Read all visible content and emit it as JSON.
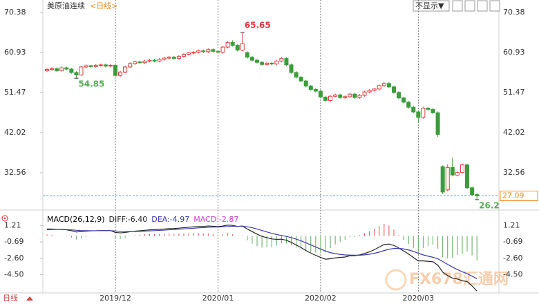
{
  "title": "美原油连续",
  "period_link": "<日线>",
  "hide_button": "不显示▼",
  "footer_period": "日线",
  "watermark": "FX678汇通网",
  "chart_data": [
    {
      "type": "candlestick",
      "ylim": [
        24.4,
        72.0
      ],
      "yticks": [
        70.38,
        60.93,
        51.47,
        42.02,
        32.56
      ],
      "up_color": "#e03c3c",
      "down_color": "#3c9c3c",
      "last": 27.09,
      "last_color": "#f08c1e",
      "months": [
        {
          "index": 14,
          "label": "2019/12"
        },
        {
          "index": 35,
          "label": "2020/01"
        },
        {
          "index": 56,
          "label": "2020/02"
        },
        {
          "index": 76,
          "label": "2020/03"
        }
      ],
      "annotations": [
        {
          "index": 40,
          "value": 65.65,
          "color": "#e03c3c"
        },
        {
          "index": 6,
          "value": 54.85,
          "color": "#5aaa5a"
        },
        {
          "index": 88,
          "value": 26.2,
          "color": "#5aaa5a"
        }
      ],
      "open": [
        56.6,
        56.9,
        57.1,
        56.6,
        57.3,
        57.0,
        56.2,
        55.6,
        57.5,
        57.8,
        57.6,
        57.9,
        58.0,
        57.7,
        57.9,
        55.5,
        56.3,
        57.5,
        58.3,
        58.7,
        58.5,
        58.9,
        59.1,
        58.9,
        59.3,
        59.6,
        59.8,
        59.5,
        60.0,
        60.5,
        60.8,
        61.0,
        61.3,
        61.1,
        61.6,
        61.2,
        61.0,
        62.2,
        63.3,
        62.6,
        61.5,
        60.9,
        59.8,
        59.1,
        58.6,
        58.1,
        58.4,
        58.2,
        58.9,
        59.5,
        58.0,
        56.2,
        55.1,
        54.2,
        53.0,
        52.2,
        51.8,
        50.4,
        49.6,
        50.6,
        50.9,
        50.3,
        50.5,
        51.1,
        50.3,
        50.8,
        51.6,
        52.0,
        52.3,
        53.1,
        53.6,
        52.8,
        51.5,
        50.2,
        49.2,
        48.0,
        46.9,
        45.6,
        47.8,
        47.5,
        46.7,
        34.0,
        28.5,
        33.8,
        32.0,
        32.6,
        34.4,
        29.0,
        27.4
      ],
      "high": [
        57.2,
        57.4,
        57.4,
        57.6,
        57.6,
        57.3,
        56.5,
        57.8,
        58.1,
        58.0,
        58.2,
        58.3,
        58.3,
        58.2,
        58.1,
        56.6,
        57.8,
        58.6,
        59.0,
        59.0,
        59.2,
        59.4,
        59.4,
        59.6,
        59.9,
        60.1,
        60.1,
        60.3,
        60.8,
        61.1,
        61.3,
        61.6,
        61.6,
        61.9,
        61.9,
        61.5,
        62.5,
        63.6,
        63.8,
        62.9,
        65.65,
        61.2,
        60.1,
        59.4,
        58.9,
        58.7,
        58.7,
        59.2,
        59.8,
        59.8,
        58.3,
        56.5,
        55.4,
        54.5,
        53.3,
        52.5,
        52.1,
        50.7,
        50.9,
        51.2,
        51.2,
        50.8,
        51.4,
        51.4,
        51.1,
        51.9,
        52.3,
        52.6,
        53.4,
        53.9,
        53.9,
        53.1,
        51.8,
        50.5,
        49.5,
        48.3,
        47.2,
        48.1,
        48.1,
        47.8,
        47.0,
        34.3,
        34.5,
        36.1,
        33.0,
        34.7,
        34.7,
        29.3,
        27.7
      ],
      "low": [
        56.3,
        56.6,
        56.3,
        56.4,
        56.7,
        55.9,
        54.85,
        55.4,
        57.2,
        57.3,
        57.3,
        57.6,
        57.4,
        57.4,
        55.2,
        55.2,
        56.0,
        57.3,
        58.0,
        58.2,
        58.2,
        58.6,
        58.6,
        58.6,
        59.0,
        59.3,
        59.2,
        59.2,
        59.7,
        60.2,
        60.5,
        60.7,
        60.8,
        60.8,
        60.9,
        60.6,
        60.7,
        61.9,
        62.3,
        61.2,
        61.2,
        59.5,
        58.8,
        58.3,
        57.8,
        57.8,
        57.9,
        57.9,
        58.6,
        57.7,
        55.9,
        54.8,
        53.9,
        52.7,
        51.9,
        51.5,
        50.1,
        49.3,
        49.3,
        50.3,
        50.0,
        50.0,
        50.2,
        50.0,
        50.0,
        50.5,
        51.3,
        51.7,
        52.0,
        52.8,
        52.5,
        51.2,
        49.9,
        48.9,
        47.7,
        46.6,
        44.4,
        45.3,
        47.2,
        46.4,
        41.0,
        27.5,
        28.2,
        31.7,
        31.7,
        32.3,
        28.7,
        27.1,
        26.2
      ],
      "close": [
        56.9,
        57.1,
        56.6,
        57.3,
        57.0,
        56.2,
        55.6,
        57.5,
        57.8,
        57.6,
        57.9,
        58.0,
        57.7,
        57.9,
        55.5,
        56.3,
        57.5,
        58.3,
        58.7,
        58.5,
        58.9,
        59.1,
        58.9,
        59.3,
        59.6,
        59.8,
        59.5,
        60.0,
        60.5,
        60.8,
        61.0,
        61.3,
        61.1,
        61.6,
        61.2,
        61.0,
        62.2,
        63.3,
        62.6,
        61.5,
        63.0,
        59.8,
        59.1,
        58.6,
        58.1,
        58.4,
        58.2,
        58.9,
        59.5,
        58.0,
        56.2,
        55.1,
        54.2,
        53.0,
        52.2,
        51.8,
        50.4,
        49.6,
        50.6,
        50.9,
        50.3,
        50.5,
        51.1,
        50.3,
        50.8,
        51.6,
        52.0,
        52.3,
        53.1,
        53.6,
        52.8,
        51.5,
        50.2,
        49.2,
        48.0,
        46.9,
        45.6,
        47.8,
        47.5,
        46.7,
        41.6,
        28.0,
        33.8,
        32.0,
        32.6,
        34.4,
        29.0,
        27.4,
        27.09
      ]
    },
    {
      "type": "macd",
      "title": "MACD(26,12,9)",
      "ylim": [
        -6.46,
        2.68
      ],
      "yticks": [
        1.21,
        -0.69,
        {
          "value": -2.6,
          "label": "-2.60"
        },
        {
          "value": -4.5,
          "label": "-4.50"
        }
      ],
      "hist_up_color": "#e05050",
      "hist_down_color": "#5aaa5a",
      "series": [
        {
          "name": "DIFF",
          "color": "#222222",
          "value_label": "-6.40",
          "values": [
            0.8,
            0.8,
            0.75,
            0.75,
            0.7,
            0.6,
            0.45,
            0.5,
            0.55,
            0.58,
            0.6,
            0.62,
            0.62,
            0.62,
            0.4,
            0.35,
            0.4,
            0.48,
            0.55,
            0.6,
            0.65,
            0.7,
            0.72,
            0.76,
            0.8,
            0.85,
            0.86,
            0.9,
            0.95,
            1.0,
            1.05,
            1.1,
            1.1,
            1.15,
            1.12,
            1.08,
            1.15,
            1.25,
            1.22,
            1.1,
            1.15,
            0.8,
            0.5,
            0.2,
            -0.05,
            -0.2,
            -0.35,
            -0.4,
            -0.38,
            -0.5,
            -0.75,
            -1.05,
            -1.35,
            -1.7,
            -2.0,
            -2.25,
            -2.5,
            -2.7,
            -2.65,
            -2.55,
            -2.5,
            -2.45,
            -2.3,
            -2.3,
            -2.2,
            -2.05,
            -1.85,
            -1.6,
            -1.3,
            -1.0,
            -0.95,
            -1.1,
            -1.4,
            -1.75,
            -2.1,
            -2.5,
            -2.9,
            -2.9,
            -2.95,
            -3.0,
            -3.4,
            -4.2,
            -4.6,
            -4.9,
            -5.0,
            -5.2,
            -5.3,
            -5.8,
            -6.4
          ]
        },
        {
          "name": "DEA",
          "color": "#3a3aa8",
          "value_label": "-4.97",
          "values": [
            0.72,
            0.74,
            0.74,
            0.74,
            0.73,
            0.7,
            0.65,
            0.62,
            0.61,
            0.6,
            0.6,
            0.61,
            0.61,
            0.61,
            0.57,
            0.53,
            0.5,
            0.5,
            0.51,
            0.53,
            0.55,
            0.58,
            0.61,
            0.64,
            0.67,
            0.71,
            0.74,
            0.77,
            0.81,
            0.85,
            0.89,
            0.93,
            0.96,
            1.0,
            1.02,
            1.03,
            1.05,
            1.09,
            1.12,
            1.11,
            1.12,
            1.06,
            0.95,
            0.8,
            0.63,
            0.46,
            0.3,
            0.16,
            0.05,
            -0.06,
            -0.2,
            -0.37,
            -0.57,
            -0.8,
            -1.04,
            -1.28,
            -1.52,
            -1.76,
            -1.94,
            -2.06,
            -2.15,
            -2.21,
            -2.23,
            -2.24,
            -2.24,
            -2.2,
            -2.13,
            -2.02,
            -1.88,
            -1.7,
            -1.55,
            -1.46,
            -1.45,
            -1.51,
            -1.63,
            -1.8,
            -2.02,
            -2.2,
            -2.35,
            -2.48,
            -2.66,
            -2.97,
            -3.3,
            -3.62,
            -3.9,
            -4.16,
            -4.39,
            -4.67,
            -4.97
          ]
        },
        {
          "name": "MACD",
          "color": "#d040d0",
          "value_label": "-2.87",
          "values": [
            0.16,
            0.12,
            0.02,
            0.02,
            -0.06,
            -0.2,
            -0.4,
            -0.24,
            -0.12,
            -0.04,
            0,
            0.02,
            0.02,
            0.02,
            -0.34,
            -0.36,
            -0.2,
            -0.04,
            0.08,
            0.14,
            0.2,
            0.24,
            0.22,
            0.24,
            0.26,
            0.28,
            0.24,
            0.26,
            0.28,
            0.3,
            0.32,
            0.34,
            0.28,
            0.3,
            0.2,
            0.1,
            0.2,
            0.32,
            0.2,
            -0.02,
            0.06,
            -0.52,
            -0.9,
            -1.2,
            -1.36,
            -1.32,
            -1.3,
            -1.12,
            -0.86,
            -0.88,
            -1.1,
            -1.36,
            -1.56,
            -1.8,
            -1.92,
            -1.94,
            -1.96,
            -1.88,
            -1.42,
            -0.98,
            -0.7,
            -0.48,
            -0.14,
            -0.12,
            0.08,
            0.3,
            0.56,
            0.84,
            1.16,
            1.4,
            1.2,
            0.72,
            0.1,
            -0.48,
            -0.94,
            -1.4,
            -1.76,
            -1.4,
            -1.2,
            -1.04,
            -1.48,
            -2.46,
            -2.6,
            -2.56,
            -2.2,
            -2.08,
            -1.82,
            -2.26,
            -2.87
          ]
        }
      ]
    }
  ]
}
